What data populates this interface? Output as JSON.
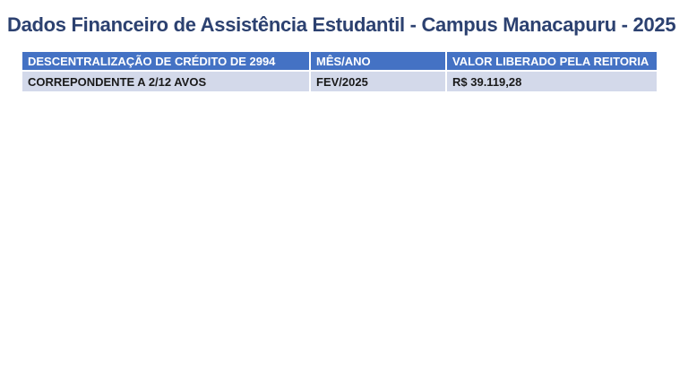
{
  "page": {
    "title": "Dados Financeiro de Assistência Estudantil - Campus Manacapuru - 2025"
  },
  "colors": {
    "title_text": "#2C4170",
    "table_header_bg": "#4472C4",
    "table_header_text": "#FFFFFF",
    "table_row_bg": "#D3D9EA",
    "table_row_text": "#1A1A1A",
    "divider": "#FFFFFF"
  },
  "table": {
    "columns": [
      {
        "label": "DESCENTRALIZAÇÃO DE CRÉDITO DE 2994"
      },
      {
        "label": "MÊS/ANO"
      },
      {
        "label": "VALOR LIBERADO PELA REITORIA"
      }
    ],
    "rows": [
      {
        "cells": [
          "CORREPONDENTE A 2/12 AVOS",
          "FEV/2025",
          "R$ 39.119,28"
        ]
      }
    ]
  }
}
